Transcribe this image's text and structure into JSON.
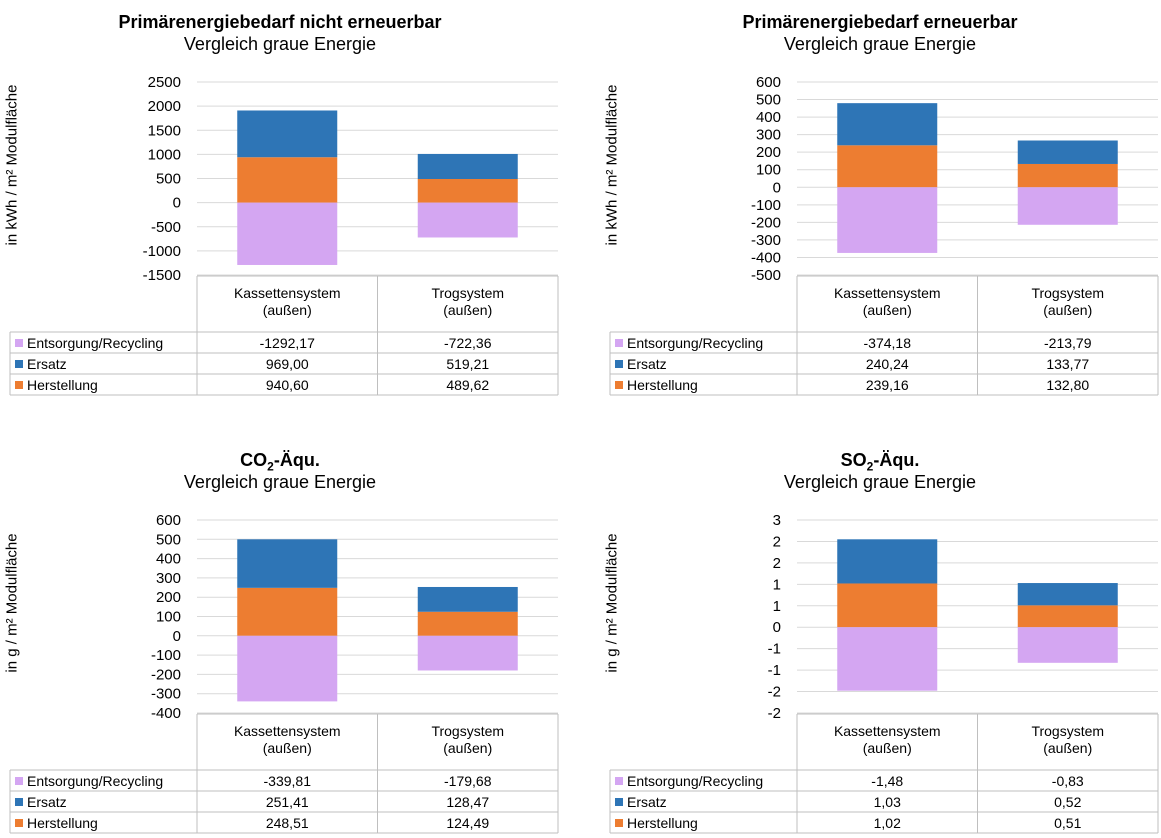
{
  "chart_data": [
    {
      "type": "bar",
      "stacked": true,
      "title": "Primärenergiebedarf nicht erneuerbar",
      "subtitle": "Vergleich graue Energie",
      "ylabel": "in kWh / m² Modulfläche",
      "yticks": [
        "2500",
        "2000",
        "1500",
        "1000",
        "500",
        "0",
        "-500",
        "-1000",
        "-1500"
      ],
      "ylim": [
        -1500,
        2500
      ],
      "categories": [
        [
          "Kassettensystem",
          "(außen)"
        ],
        [
          "Trogsystem",
          "(außen)"
        ]
      ],
      "series": [
        {
          "name": "Entsorgung/Recycling",
          "color": "#d4a6f2",
          "values": [
            -1292.17,
            -722.36
          ],
          "labels": [
            "-1292,17",
            "-722,36"
          ]
        },
        {
          "name": "Ersatz",
          "color": "#2e75b6",
          "values": [
            969.0,
            519.21
          ],
          "labels": [
            "969,00",
            "519,21"
          ]
        },
        {
          "name": "Herstellung",
          "color": "#ed7d31",
          "values": [
            940.6,
            489.62
          ],
          "labels": [
            "940,60",
            "489,62"
          ]
        }
      ],
      "grid": true
    },
    {
      "type": "bar",
      "stacked": true,
      "title": "Primärenergiebedarf erneuerbar",
      "subtitle": "Vergleich graue Energie",
      "ylabel": "in kWh / m² Modulfläche",
      "yticks": [
        "600",
        "500",
        "400",
        "300",
        "200",
        "100",
        "0",
        "-100",
        "-200",
        "-300",
        "-400",
        "-500"
      ],
      "ylim": [
        -500,
        600
      ],
      "categories": [
        [
          "Kassettensystem",
          "(außen)"
        ],
        [
          "Trogsystem",
          "(außen)"
        ]
      ],
      "series": [
        {
          "name": "Entsorgung/Recycling",
          "color": "#d4a6f2",
          "values": [
            -374.18,
            -213.79
          ],
          "labels": [
            "-374,18",
            "-213,79"
          ]
        },
        {
          "name": "Ersatz",
          "color": "#2e75b6",
          "values": [
            240.24,
            133.77
          ],
          "labels": [
            "240,24",
            "133,77"
          ]
        },
        {
          "name": "Herstellung",
          "color": "#ed7d31",
          "values": [
            239.16,
            132.8
          ],
          "labels": [
            "239,16",
            "132,80"
          ]
        }
      ],
      "grid": true
    },
    {
      "type": "bar",
      "stacked": true,
      "title_main": "CO",
      "title_sub": "2",
      "title_tail": "-Äqu.",
      "subtitle": "Vergleich graue Energie",
      "ylabel": "in g / m² Modulfläche",
      "yticks": [
        "600",
        "500",
        "400",
        "300",
        "200",
        "100",
        "0",
        "-100",
        "-200",
        "-300",
        "-400"
      ],
      "ylim": [
        -400,
        600
      ],
      "categories": [
        [
          "Kassettensystem",
          "(außen)"
        ],
        [
          "Trogsystem",
          "(außen)"
        ]
      ],
      "series": [
        {
          "name": "Entsorgung/Recycling",
          "color": "#d4a6f2",
          "values": [
            -339.81,
            -179.68
          ],
          "labels": [
            "-339,81",
            "-179,68"
          ]
        },
        {
          "name": "Ersatz",
          "color": "#2e75b6",
          "values": [
            251.41,
            128.47
          ],
          "labels": [
            "251,41",
            "128,47"
          ]
        },
        {
          "name": "Herstellung",
          "color": "#ed7d31",
          "values": [
            248.51,
            124.49
          ],
          "labels": [
            "248,51",
            "124,49"
          ]
        }
      ],
      "grid": true
    },
    {
      "type": "bar",
      "stacked": true,
      "title_main": "SO",
      "title_sub": "2",
      "title_tail": "-Äqu.",
      "subtitle": "Vergleich graue Energie",
      "ylabel": "in g / m² Modulfläche",
      "yticks": [
        "3",
        "2",
        "2",
        "1",
        "1",
        "0",
        "-1",
        "-1",
        "-2",
        "-2"
      ],
      "ylim": [
        -2,
        2.5
      ],
      "categories": [
        [
          "Kassettensystem",
          "(außen)"
        ],
        [
          "Trogsystem",
          "(außen)"
        ]
      ],
      "series": [
        {
          "name": "Entsorgung/Recycling",
          "color": "#d4a6f2",
          "values": [
            -1.48,
            -0.83
          ],
          "labels": [
            "-1,48",
            "-0,83"
          ]
        },
        {
          "name": "Ersatz",
          "color": "#2e75b6",
          "values": [
            1.03,
            0.52
          ],
          "labels": [
            "1,03",
            "0,52"
          ]
        },
        {
          "name": "Herstellung",
          "color": "#ed7d31",
          "values": [
            1.02,
            0.51
          ],
          "labels": [
            "1,02",
            "0,51"
          ]
        }
      ],
      "grid": true
    }
  ]
}
